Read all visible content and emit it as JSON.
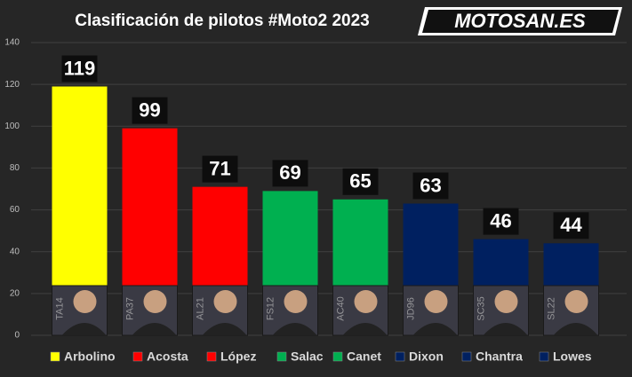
{
  "logo": "MOTOSAN.ES",
  "chart_data": {
    "type": "bar",
    "title": "Clasificación de pilotos #Moto2 2023",
    "categories": [
      "Arbolino",
      "Acosta",
      "López",
      "Salac",
      "Canet",
      "Dixon",
      "Chantra",
      "Lowes"
    ],
    "values": [
      119,
      99,
      71,
      69,
      65,
      63,
      46,
      44
    ],
    "colors": [
      "#ffff00",
      "#ff0000",
      "#ff0000",
      "#00b050",
      "#00b050",
      "#002060",
      "#002060",
      "#002060"
    ],
    "photo_labels": [
      "TA14",
      "PA37",
      "AL21",
      "FS12",
      "AC40",
      "JD96",
      "SC35",
      "SL22"
    ],
    "ylim": [
      0,
      140
    ],
    "yticks": [
      0,
      20,
      40,
      60,
      80,
      100,
      120,
      140
    ],
    "grid": true,
    "legend": "bottom"
  }
}
